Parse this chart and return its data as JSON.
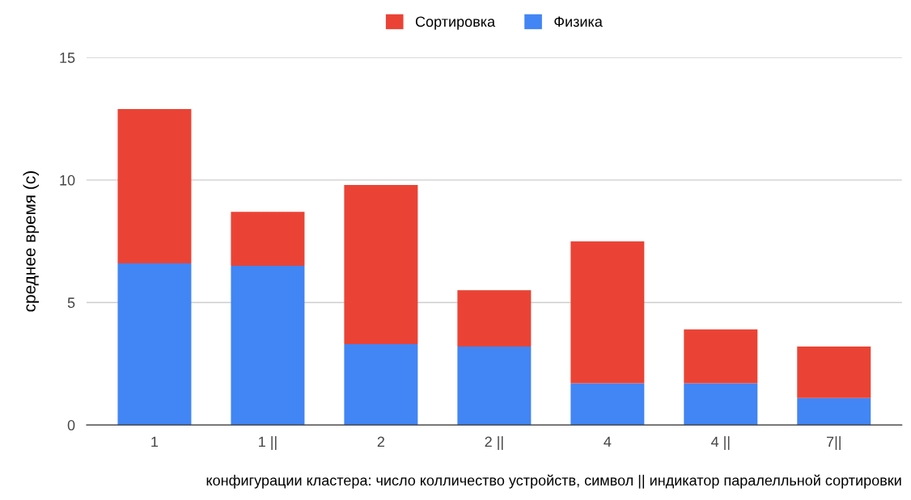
{
  "chart_data": {
    "type": "bar",
    "stacked": true,
    "categories": [
      "1",
      "1 ||",
      "2",
      "2 ||",
      "4",
      "4 ||",
      "7||"
    ],
    "series": [
      {
        "name": "Физика",
        "color": "#4285f4",
        "values": [
          6.6,
          6.5,
          3.3,
          3.2,
          1.7,
          1.7,
          1.1
        ]
      },
      {
        "name": "Сортировка",
        "color": "#ea4335",
        "values": [
          6.3,
          2.2,
          6.5,
          2.3,
          5.8,
          2.2,
          2.1
        ]
      }
    ],
    "xlabel": "конфигурации кластера: число колличество устройств, символ || индикатор паралелльной сортировки",
    "ylabel": "среднее время (с)",
    "ylim": [
      0,
      15
    ],
    "yticks": [
      0,
      5,
      10,
      15
    ],
    "grid": "y",
    "legend": "top"
  }
}
